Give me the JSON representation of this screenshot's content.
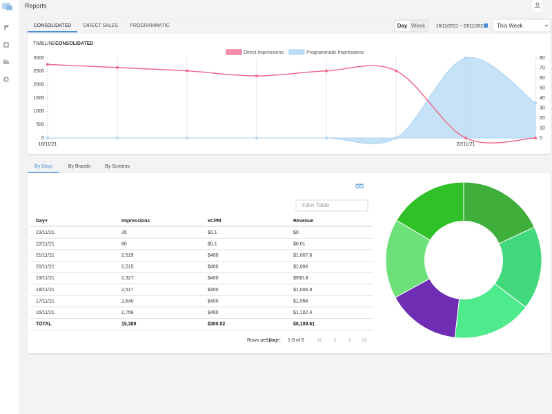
{
  "header": {
    "title": "Reports"
  },
  "tabs": [
    "CONSOLIDATED",
    "DIRECT SALES",
    "PROGRAMMATIC"
  ],
  "period_toggle": [
    "Day",
    "Week"
  ],
  "date_range": "16/11/2021 ~ 23/11/2021",
  "period_select": "This Week",
  "timeline_label": "TIMELINE:",
  "timeline_value": "CONSOLIDATED",
  "chart_data": [
    {
      "type": "line",
      "categories": [
        "16/11/21",
        null,
        null,
        null,
        null,
        null,
        "22/11/21",
        null
      ],
      "series": [
        {
          "name": "Direct Impressions",
          "color": "#f0698b",
          "values": [
            2756,
            2640,
            2517,
            2327,
            2515,
            2519,
            0,
            0
          ]
        },
        {
          "name": "Programmatic Impressions",
          "color": "#a8d2f3",
          "axis": "y2",
          "area": true,
          "values": [
            0,
            0,
            0,
            0,
            0,
            0,
            80,
            35
          ]
        }
      ],
      "ylim": [
        0,
        3000
      ],
      "yticks": [
        0,
        500,
        1000,
        1500,
        2000,
        2500,
        3000
      ],
      "y2lim": [
        0,
        80
      ],
      "y2ticks": [
        0,
        10,
        20,
        30,
        40,
        50,
        60,
        70,
        80
      ],
      "grid": true,
      "legend": "top"
    },
    {
      "type": "pie",
      "hole": 0.5,
      "values": [
        1102.4,
        1056,
        0.01,
        0,
        1006.8,
        930.8,
        1006,
        1007.6
      ],
      "colors": [
        "#3fae3a",
        "#42d87c",
        "#5ad8a0",
        "#7fdcc0",
        "#4eea8c",
        "#6e2db3",
        "#6de07a",
        "#30c027"
      ]
    }
  ],
  "sub_tabs": [
    "By Days",
    "By Brands",
    "By Screens"
  ],
  "filter_placeholder": "Filter Table",
  "table": {
    "columns": [
      "Day",
      "Impressions",
      "eCPM",
      "Revenue"
    ],
    "rows": [
      [
        "23/11/21",
        "35",
        "$0.1",
        "$0"
      ],
      [
        "22/11/21",
        "80",
        "$0.1",
        "$0.01"
      ],
      [
        "21/11/21",
        "2,519",
        "$400",
        "$1,007.6"
      ],
      [
        "20/11/21",
        "2,515",
        "$400",
        "$1,006"
      ],
      [
        "19/11/21",
        "2,327",
        "$400",
        "$930.8"
      ],
      [
        "18/11/21",
        "2,517",
        "$400",
        "$1,006.8"
      ],
      [
        "17/11/21",
        "2,640",
        "$400",
        "$1,056"
      ],
      [
        "16/11/21",
        "2,756",
        "$400",
        "$1,102.4"
      ]
    ],
    "total": [
      "TOTAL",
      "15,389",
      "$300.02",
      "$6,109.61"
    ]
  },
  "pagination": {
    "rows_per_page_label": "Rows per page:",
    "rows_per_page": "10",
    "range": "1-8 of 8"
  }
}
